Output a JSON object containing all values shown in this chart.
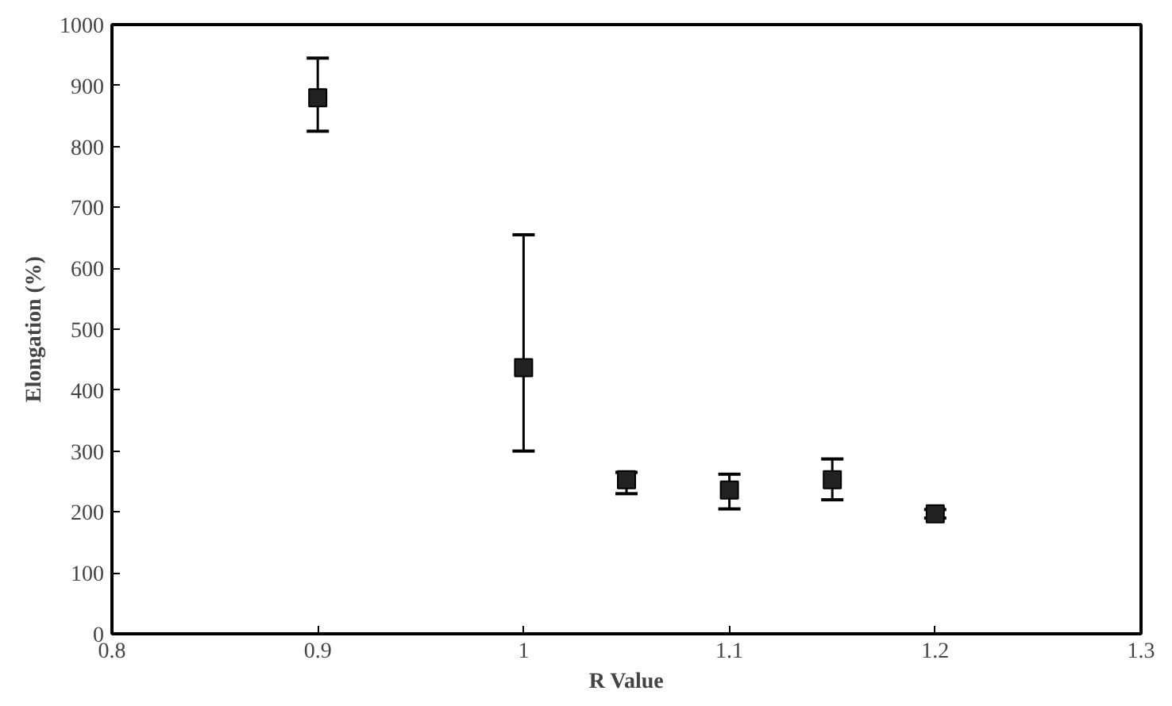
{
  "chart_data": {
    "type": "scatter",
    "xlabel": "R Value",
    "ylabel": "Elongation (%)",
    "x": [
      0.9,
      1.0,
      1.05,
      1.1,
      1.15,
      1.2
    ],
    "values": [
      880,
      437,
      253,
      236,
      253,
      197
    ],
    "errors": [
      [
        825,
        945
      ],
      [
        300,
        655
      ],
      [
        230,
        265
      ],
      [
        205,
        262
      ],
      [
        220,
        287
      ],
      [
        190,
        204
      ]
    ],
    "color": "#222222",
    "marker": "square",
    "xlim": [
      0.8,
      1.3
    ],
    "xticks": [
      0.8,
      0.9,
      {
        "value": 1.0,
        "label": "1"
      },
      1.1,
      1.2,
      1.3
    ],
    "ylim": [
      0,
      1000
    ],
    "yticks": [
      0,
      100,
      200,
      300,
      400,
      500,
      600,
      700,
      800,
      900,
      1000
    ],
    "grid": false
  }
}
